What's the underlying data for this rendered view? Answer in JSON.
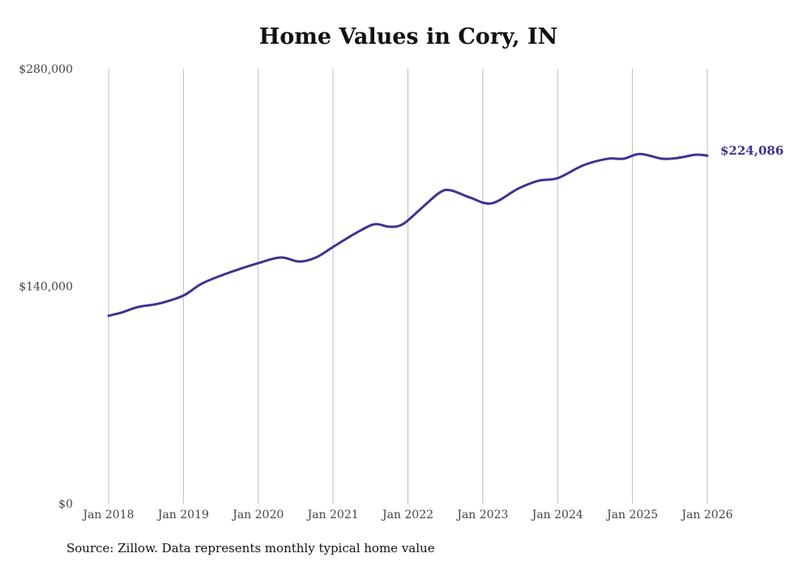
{
  "chart_data": {
    "type": "line",
    "title": "Home Values in Cory, IN",
    "xlabel": "",
    "ylabel": "",
    "ylim": [
      0,
      280000
    ],
    "xlim": [
      2018.0,
      2026.0
    ],
    "y_ticks": [
      {
        "value": 0,
        "label": "$0"
      },
      {
        "value": 140000,
        "label": "$140,000"
      },
      {
        "value": 280000,
        "label": "$280,000"
      }
    ],
    "x_ticks": [
      {
        "value": 2018,
        "label": "Jan 2018"
      },
      {
        "value": 2019,
        "label": "Jan 2019"
      },
      {
        "value": 2020,
        "label": "Jan 2020"
      },
      {
        "value": 2021,
        "label": "Jan 2021"
      },
      {
        "value": 2022,
        "label": "Jan 2022"
      },
      {
        "value": 2023,
        "label": "Jan 2023"
      },
      {
        "value": 2024,
        "label": "Jan 2024"
      },
      {
        "value": 2025,
        "label": "Jan 2025"
      },
      {
        "value": 2026,
        "label": "Jan 2026"
      }
    ],
    "grid": "vertical",
    "series": [
      {
        "name": "Typical home value",
        "color": "#3d3490",
        "x": [
          2018.0,
          2018.17,
          2018.4,
          2018.67,
          2019.0,
          2019.25,
          2019.6,
          2020.0,
          2020.3,
          2020.55,
          2020.77,
          2021.0,
          2021.3,
          2021.55,
          2021.75,
          2021.93,
          2022.17,
          2022.42,
          2022.57,
          2022.83,
          2023.12,
          2023.47,
          2023.75,
          2024.0,
          2024.35,
          2024.67,
          2024.88,
          2025.1,
          2025.4,
          2025.6,
          2025.85,
          2026.0
        ],
        "values": [
          121000,
          123000,
          126700,
          128800,
          134000,
          141800,
          148600,
          154900,
          158500,
          155900,
          158500,
          165300,
          174100,
          179900,
          178300,
          179900,
          189800,
          200200,
          201800,
          197100,
          193400,
          202800,
          208000,
          209600,
          218000,
          222100,
          222100,
          225200,
          222100,
          222600,
          224700,
          224086
        ]
      }
    ],
    "end_label": "$224,086"
  },
  "source": "Source: Zillow. Data represents monthly typical home value"
}
